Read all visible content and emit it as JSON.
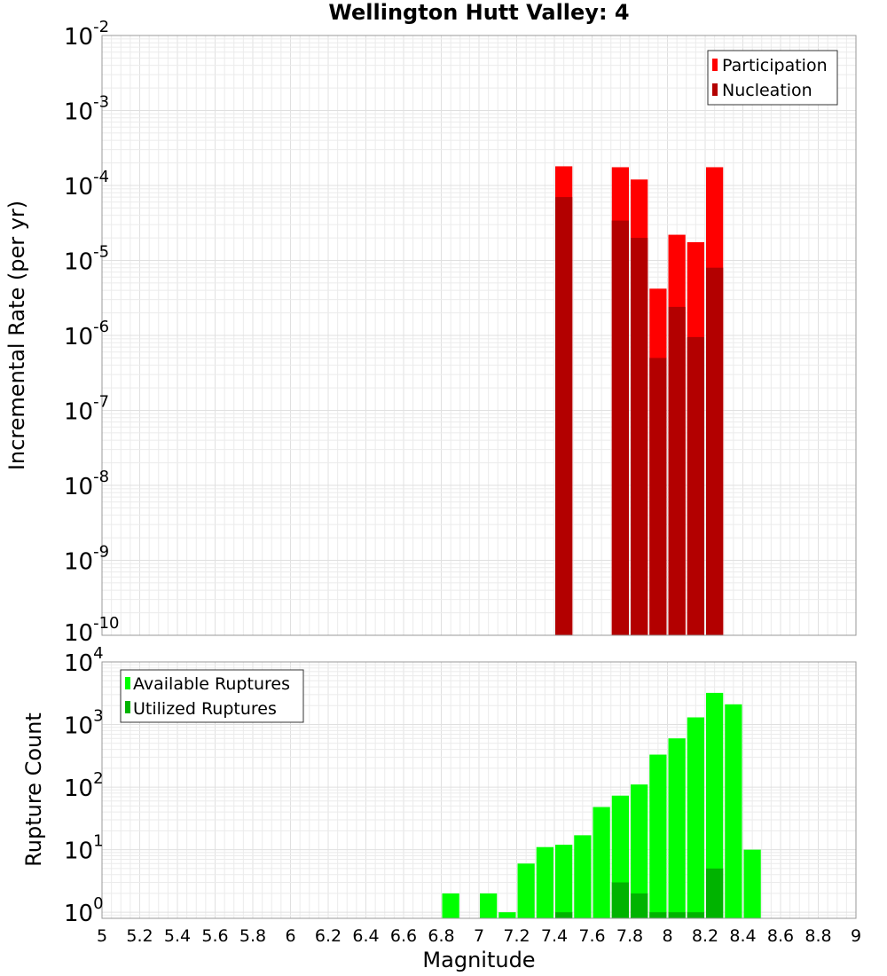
{
  "chart_data": [
    {
      "type": "bar",
      "title": "Wellington Hutt Valley: 4",
      "xlabel": "",
      "ylabel": "Incremental Rate (per yr)",
      "xlim": [
        5,
        9
      ],
      "ylim": [
        1e-10,
        0.01
      ],
      "y_scale": "log",
      "grid": true,
      "legend_position": "top-right",
      "bar_width": 0.1,
      "series": [
        {
          "name": "Participation",
          "color": "#ff0000",
          "points": [
            {
              "x": 7.45,
              "y": 0.00018
            },
            {
              "x": 7.75,
              "y": 0.000175
            },
            {
              "x": 7.85,
              "y": 0.00012
            },
            {
              "x": 7.95,
              "y": 4.2e-06
            },
            {
              "x": 8.05,
              "y": 2.2e-05
            },
            {
              "x": 8.15,
              "y": 1.75e-05
            },
            {
              "x": 8.25,
              "y": 0.000175
            }
          ]
        },
        {
          "name": "Nucleation",
          "color": "#b30000",
          "points": [
            {
              "x": 7.45,
              "y": 7e-05
            },
            {
              "x": 7.75,
              "y": 3.4e-05
            },
            {
              "x": 7.85,
              "y": 2e-05
            },
            {
              "x": 7.95,
              "y": 5e-07
            },
            {
              "x": 8.05,
              "y": 2.4e-06
            },
            {
              "x": 8.15,
              "y": 9.5e-07
            },
            {
              "x": 8.25,
              "y": 8e-06
            }
          ]
        }
      ],
      "y_ticks": [
        {
          "base": "10",
          "exp": "-10"
        },
        {
          "base": "10",
          "exp": "-9"
        },
        {
          "base": "10",
          "exp": "-8"
        },
        {
          "base": "10",
          "exp": "-7"
        },
        {
          "base": "10",
          "exp": "-6"
        },
        {
          "base": "10",
          "exp": "-5"
        },
        {
          "base": "10",
          "exp": "-4"
        },
        {
          "base": "10",
          "exp": "-3"
        },
        {
          "base": "10",
          "exp": "-2"
        }
      ]
    },
    {
      "type": "bar",
      "title": "",
      "xlabel": "Magnitude",
      "ylabel": "Rupture Count",
      "xlim": [
        5,
        9
      ],
      "ylim": [
        0.8,
        10000.0
      ],
      "y_scale": "log",
      "grid": true,
      "legend_position": "top-left",
      "bar_width": 0.1,
      "series": [
        {
          "name": "Available Ruptures",
          "color": "#00ff00",
          "points": [
            {
              "x": 6.85,
              "y": 2
            },
            {
              "x": 7.05,
              "y": 2
            },
            {
              "x": 7.15,
              "y": 1
            },
            {
              "x": 7.25,
              "y": 6
            },
            {
              "x": 7.35,
              "y": 11
            },
            {
              "x": 7.45,
              "y": 12
            },
            {
              "x": 7.55,
              "y": 17
            },
            {
              "x": 7.65,
              "y": 48
            },
            {
              "x": 7.75,
              "y": 73
            },
            {
              "x": 7.85,
              "y": 110
            },
            {
              "x": 7.95,
              "y": 330
            },
            {
              "x": 8.05,
              "y": 600
            },
            {
              "x": 8.15,
              "y": 1300
            },
            {
              "x": 8.25,
              "y": 3200
            },
            {
              "x": 8.35,
              "y": 2100
            },
            {
              "x": 8.45,
              "y": 10
            }
          ]
        },
        {
          "name": "Utilized Ruptures",
          "color": "#00b300",
          "points": [
            {
              "x": 7.45,
              "y": 1
            },
            {
              "x": 7.75,
              "y": 3
            },
            {
              "x": 7.85,
              "y": 2
            },
            {
              "x": 7.95,
              "y": 1
            },
            {
              "x": 8.05,
              "y": 1
            },
            {
              "x": 8.15,
              "y": 1
            },
            {
              "x": 8.25,
              "y": 5
            }
          ]
        }
      ],
      "y_ticks": [
        {
          "base": "10",
          "exp": "0"
        },
        {
          "base": "10",
          "exp": "1"
        },
        {
          "base": "10",
          "exp": "2"
        },
        {
          "base": "10",
          "exp": "3"
        },
        {
          "base": "10",
          "exp": "4"
        }
      ],
      "x_ticks": [
        "5",
        "5.2",
        "5.4",
        "5.6",
        "5.8",
        "6",
        "6.2",
        "6.4",
        "6.6",
        "6.8",
        "7",
        "7.2",
        "7.4",
        "7.6",
        "7.8",
        "8",
        "8.2",
        "8.4",
        "8.6",
        "8.8",
        "9"
      ]
    }
  ]
}
